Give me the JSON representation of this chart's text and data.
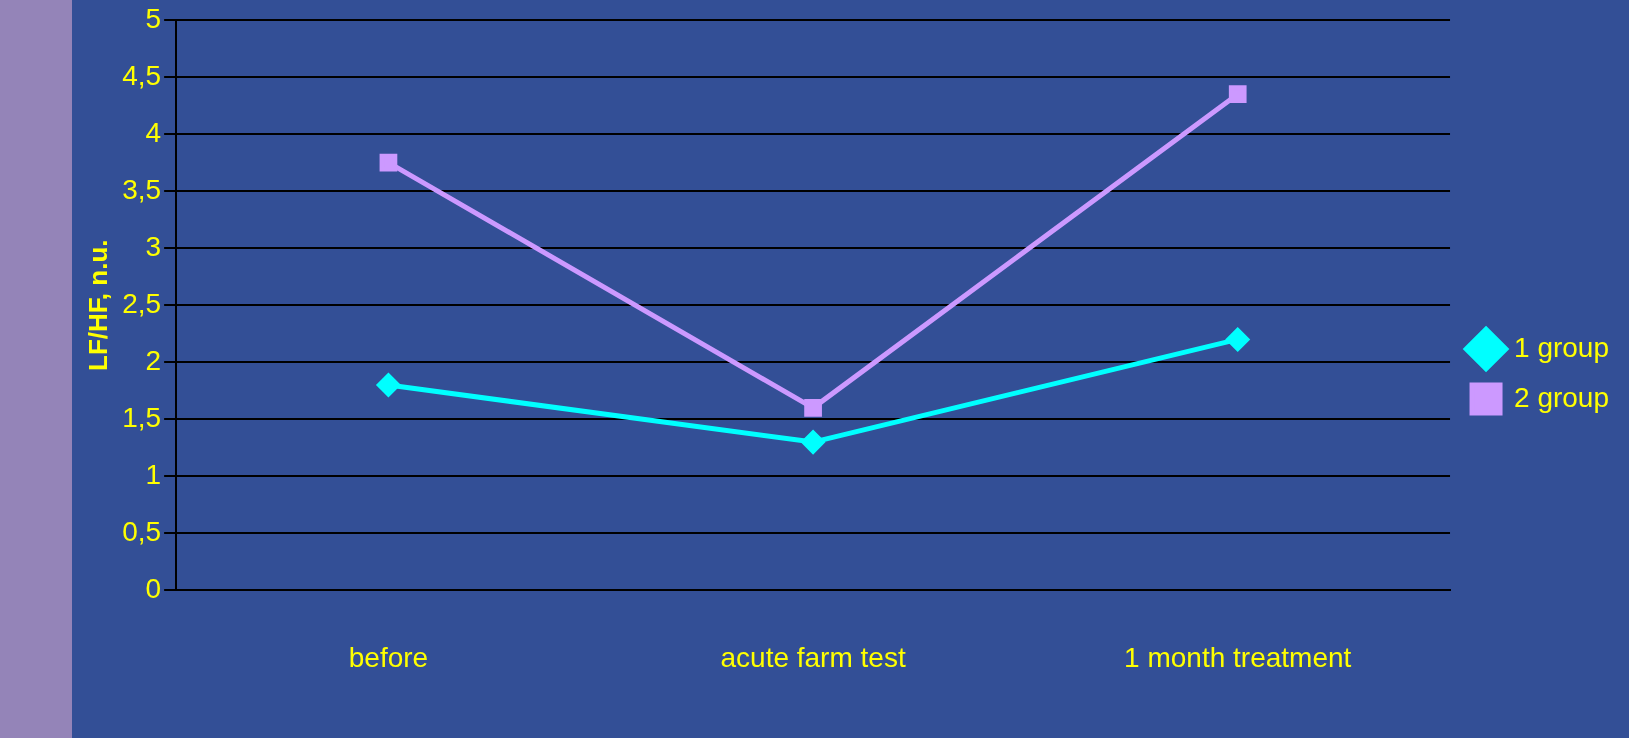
{
  "chart_data": {
    "type": "line",
    "ylabel": "LF/HF, n.u.",
    "categories": [
      "before",
      "acute farm test",
      "1 month treatment"
    ],
    "series": [
      {
        "name": "1 group",
        "color": "#00ffff",
        "marker": "diamond",
        "values": [
          1.8,
          1.3,
          2.2
        ]
      },
      {
        "name": "2 group",
        "color": "#cc99ff",
        "marker": "square",
        "values": [
          3.75,
          1.6,
          4.35
        ]
      }
    ],
    "ylim": [
      0,
      5
    ],
    "yticks": [
      0,
      {
        "value": 0.5,
        "label": "0,5"
      },
      1,
      {
        "value": 1.5,
        "label": "1,5"
      },
      2,
      {
        "value": 2.5,
        "label": "2,5"
      },
      3,
      {
        "value": 3.5,
        "label": "3,5"
      },
      4,
      {
        "value": 4.5,
        "label": "4,5"
      },
      5
    ],
    "grid": "y",
    "legend": "right"
  }
}
